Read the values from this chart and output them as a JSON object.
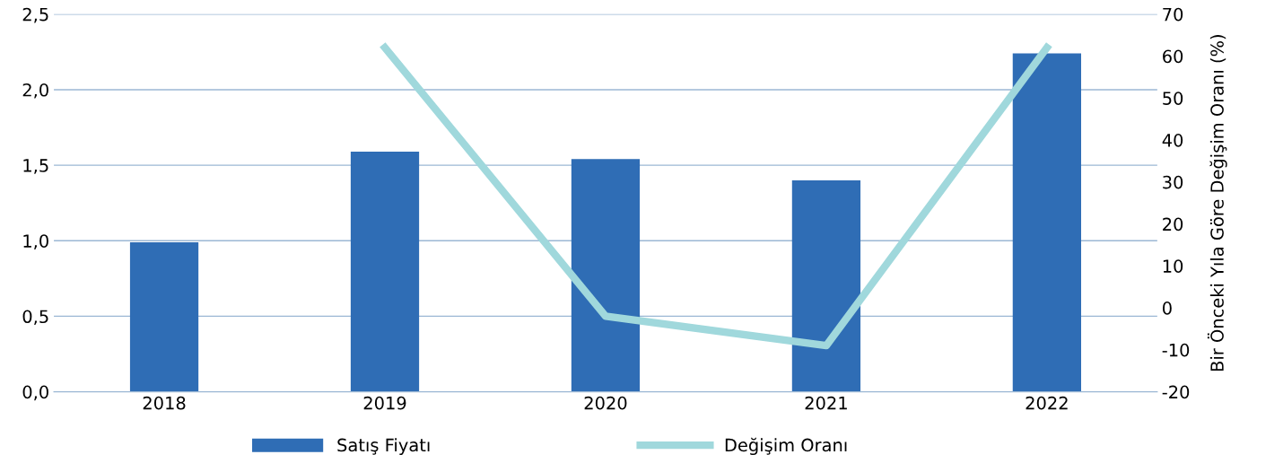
{
  "chart_data": {
    "type": "bar",
    "categories": [
      "2018",
      "2019",
      "2020",
      "2021",
      "2022"
    ],
    "series": [
      {
        "name": "Satış Fiyatı",
        "color": "#2f6db5",
        "values": [
          0.99,
          1.59,
          1.54,
          1.4,
          2.24
        ]
      },
      {
        "name": "Değişim Oranı",
        "type": "line",
        "axis": "y2",
        "color": "#a0d8dc",
        "values": [
          null,
          62,
          -2,
          -9,
          62
        ]
      }
    ],
    "ylim": [
      0,
      2.5
    ],
    "yticks": [
      {
        "value": 0,
        "label": "0,0"
      },
      {
        "value": 0.5,
        "label": "0,5"
      },
      {
        "value": 1,
        "label": "1,0"
      },
      {
        "value": 1.5,
        "label": "1,5"
      },
      {
        "value": 2,
        "label": "2,0"
      },
      {
        "value": 2.5,
        "label": "2,5"
      }
    ],
    "y2lim": [
      -20,
      70
    ],
    "y2ticks": [
      -20,
      -10,
      0,
      10,
      20,
      30,
      40,
      50,
      60,
      70
    ],
    "y2label": "Bir Önceki Yıla Göre Değişim Oranı (%)",
    "grid": "y",
    "legend": "bottom",
    "marker": "none",
    "line_style": "solid"
  }
}
